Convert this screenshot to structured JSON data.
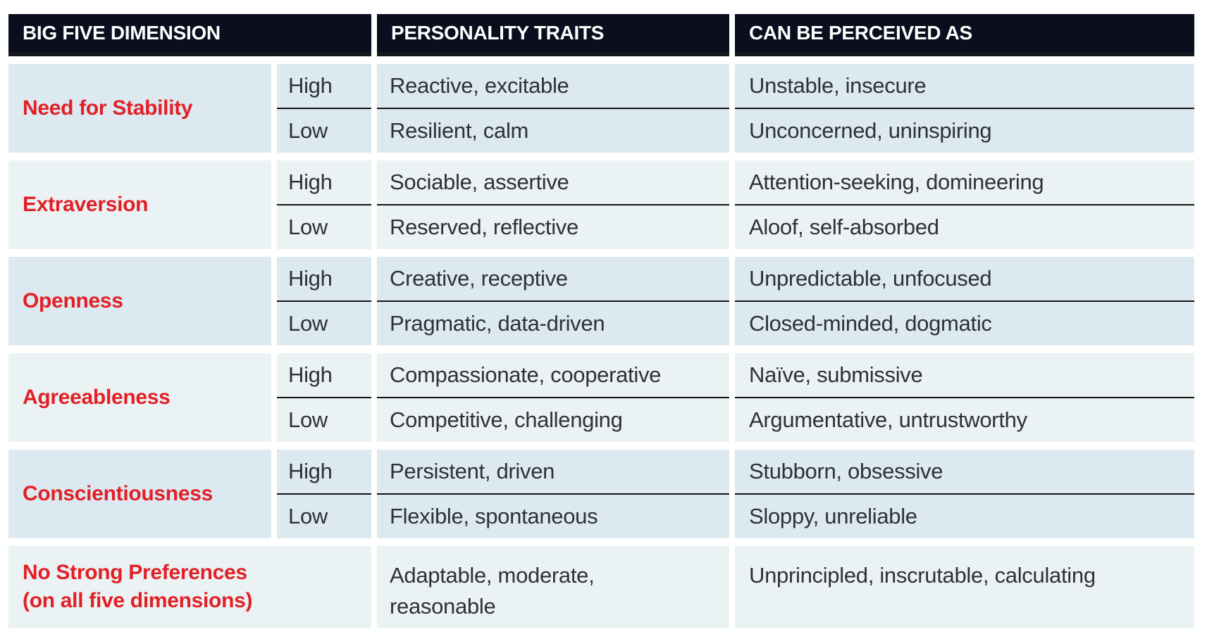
{
  "table": {
    "columns": {
      "dimension_header": "BIG FIVE DIMENSION",
      "traits_header": "PERSONALITY TRAITS",
      "perceived_header": "CAN BE PERCEIVED AS"
    },
    "colors": {
      "header_bg": "#0a0e1e",
      "header_underline": "#17191e",
      "header_text": "#ffffff",
      "row_bg_blue": "#dce9f1",
      "row_bg_pale": "#ebf2f3",
      "dimension_text": "#e31f26",
      "body_text": "#2e3135",
      "divider": "#141414"
    },
    "groups": [
      {
        "dimension": "Need for Stability",
        "rows": [
          {
            "level": "High",
            "traits": "Reactive, excitable",
            "perceived": "Unstable, insecure"
          },
          {
            "level": "Low",
            "traits": "Resilient, calm",
            "perceived": "Unconcerned, uninspiring"
          }
        ]
      },
      {
        "dimension": "Extraversion",
        "rows": [
          {
            "level": "High",
            "traits": "Sociable, assertive",
            "perceived": "Attention-seeking, domineering"
          },
          {
            "level": "Low",
            "traits": "Reserved, reflective",
            "perceived": "Aloof, self-absorbed"
          }
        ]
      },
      {
        "dimension": "Openness",
        "rows": [
          {
            "level": "High",
            "traits": "Creative, receptive",
            "perceived": "Unpredictable, unfocused"
          },
          {
            "level": "Low",
            "traits": "Pragmatic, data-driven",
            "perceived": "Closed-minded, dogmatic"
          }
        ]
      },
      {
        "dimension": "Agreeableness",
        "rows": [
          {
            "level": "High",
            "traits": "Compassionate, cooperative",
            "perceived": "Naïve, submissive"
          },
          {
            "level": "Low",
            "traits": "Competitive, challenging",
            "perceived": "Argumentative, untrustworthy"
          }
        ]
      },
      {
        "dimension": "Conscientiousness",
        "rows": [
          {
            "level": "High",
            "traits": "Persistent, driven",
            "perceived": "Stubborn, obsessive"
          },
          {
            "level": "Low",
            "traits": "Flexible, spontaneous",
            "perceived": "Sloppy, unreliable"
          }
        ]
      }
    ],
    "summary_row": {
      "dimension": "No Strong Preferences\n(on all five dimensions)",
      "traits": "Adaptable, moderate,\nreasonable",
      "perceived": "Unprincipled, inscrutable, calculating"
    }
  }
}
